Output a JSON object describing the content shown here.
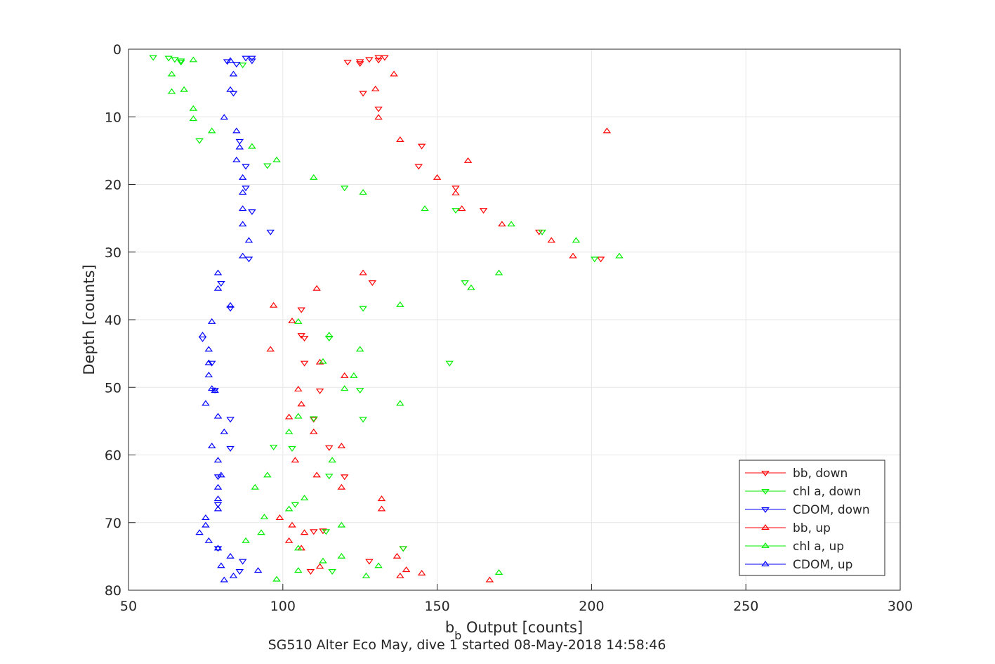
{
  "chart_data": {
    "type": "scatter",
    "title": "",
    "xlabel_main": "b",
    "xlabel_sub": "b",
    "xlabel_rest": " Output [counts]",
    "caption": "SG510 Alter Eco May, dive 1 started 08-May-2018 14:58:46",
    "ylabel": "Depth [counts]",
    "xlim": [
      50,
      300
    ],
    "ylim": [
      0,
      80
    ],
    "y_reversed": true,
    "xticks": [
      50,
      100,
      150,
      200,
      250,
      300
    ],
    "yticks": [
      0,
      10,
      20,
      30,
      40,
      50,
      60,
      70,
      80
    ],
    "xtick_labels": [
      "50",
      "100",
      "150",
      "200",
      "250",
      "300"
    ],
    "ytick_labels": [
      "0",
      "10",
      "20",
      "30",
      "40",
      "50",
      "60",
      "70",
      "80"
    ],
    "grid": true,
    "legend_position": "bottom-right",
    "series": [
      {
        "name": "bb, down",
        "color": "#ff0000",
        "marker": "triangle-down",
        "points": [
          [
            131,
            1.2
          ],
          [
            133,
            1.2
          ],
          [
            128,
            1.5
          ],
          [
            131,
            1.6
          ],
          [
            125,
            1.8
          ],
          [
            121,
            1.9
          ],
          [
            125,
            2.1
          ],
          [
            126,
            6.5
          ],
          [
            131,
            8.8
          ],
          [
            145,
            14.3
          ],
          [
            144,
            17.3
          ],
          [
            156,
            20.5
          ],
          [
            165,
            23.8
          ],
          [
            183,
            27
          ],
          [
            203,
            31
          ],
          [
            129,
            34.5
          ],
          [
            106,
            38.5
          ],
          [
            106,
            42.3
          ],
          [
            107,
            42.7
          ],
          [
            107,
            46.4
          ],
          [
            112,
            50.5
          ],
          [
            110,
            54.7
          ],
          [
            115,
            58.9
          ],
          [
            120,
            63.2
          ],
          [
            113,
            71.2
          ],
          [
            110,
            71.3
          ],
          [
            139,
            73.8
          ],
          [
            128,
            75.7
          ],
          [
            109,
            77.2
          ]
        ]
      },
      {
        "name": "chl a, down",
        "color": "#00ee00",
        "marker": "triangle-down",
        "points": [
          [
            58,
            1.2
          ],
          [
            63,
            1.3
          ],
          [
            65,
            1.5
          ],
          [
            67,
            1.7
          ],
          [
            67,
            1.9
          ],
          [
            87,
            2.3
          ],
          [
            73,
            13.5
          ],
          [
            95,
            17.2
          ],
          [
            120,
            20.5
          ],
          [
            156,
            23.8
          ],
          [
            184,
            27
          ],
          [
            201,
            31
          ],
          [
            159,
            34.5
          ],
          [
            126,
            38.3
          ],
          [
            115,
            42.7
          ],
          [
            154,
            46.4
          ],
          [
            125,
            50.4
          ],
          [
            110,
            54.6
          ],
          [
            126,
            54.7
          ],
          [
            103,
            59
          ],
          [
            97,
            58.8
          ],
          [
            115,
            63.1
          ],
          [
            104,
            67.3
          ],
          [
            114,
            71.3
          ],
          [
            139,
            73.8
          ],
          [
            116,
            77.2
          ]
        ]
      },
      {
        "name": "CDOM, down",
        "color": "#0000ff",
        "marker": "triangle-down",
        "points": [
          [
            88,
            1.3
          ],
          [
            90,
            1.3
          ],
          [
            90,
            1.7
          ],
          [
            82,
            1.8
          ],
          [
            85,
            2.2
          ],
          [
            84,
            6.5
          ],
          [
            86,
            13.6
          ],
          [
            88,
            17.3
          ],
          [
            88,
            20.5
          ],
          [
            90,
            24
          ],
          [
            96,
            27
          ],
          [
            89,
            31
          ],
          [
            80,
            34.6
          ],
          [
            83,
            38.3
          ],
          [
            74,
            42.8
          ],
          [
            77,
            46.4
          ],
          [
            78,
            50.4
          ],
          [
            83,
            54.7
          ],
          [
            83,
            59
          ],
          [
            79,
            63.2
          ],
          [
            79,
            67.3
          ],
          [
            79,
            73.8
          ],
          [
            87,
            75.7
          ],
          [
            86,
            77.2
          ]
        ]
      },
      {
        "name": "bb, up",
        "color": "#ff0000",
        "marker": "triangle-up",
        "points": [
          [
            136,
            3.7
          ],
          [
            130,
            5.9
          ],
          [
            131,
            10.1
          ],
          [
            205,
            12.1
          ],
          [
            138,
            13.4
          ],
          [
            160,
            16.5
          ],
          [
            150,
            19
          ],
          [
            156,
            21.3
          ],
          [
            158,
            23.6
          ],
          [
            171,
            25.9
          ],
          [
            187,
            28.3
          ],
          [
            194,
            30.6
          ],
          [
            126,
            33.1
          ],
          [
            111,
            35.4
          ],
          [
            97,
            37.9
          ],
          [
            103,
            40.2
          ],
          [
            96,
            44.4
          ],
          [
            112,
            46.3
          ],
          [
            120,
            48.3
          ],
          [
            105,
            50.3
          ],
          [
            106,
            52.5
          ],
          [
            102,
            54.4
          ],
          [
            110,
            56.6
          ],
          [
            119,
            58.7
          ],
          [
            104,
            60.8
          ],
          [
            111,
            63
          ],
          [
            119,
            64.8
          ],
          [
            132,
            66.5
          ],
          [
            132,
            68
          ],
          [
            99,
            69.3
          ],
          [
            103,
            70.4
          ],
          [
            107,
            71.5
          ],
          [
            102,
            72.7
          ],
          [
            106,
            73.8
          ],
          [
            137,
            75
          ],
          [
            112,
            76.5
          ],
          [
            140,
            77
          ],
          [
            145,
            77.5
          ],
          [
            138,
            77.9
          ],
          [
            167,
            78.5
          ]
        ]
      },
      {
        "name": "chl a, up",
        "color": "#00ee00",
        "marker": "triangle-up",
        "points": [
          [
            71,
            1.6
          ],
          [
            64,
            3.7
          ],
          [
            68,
            6
          ],
          [
            64,
            6.3
          ],
          [
            71,
            8.8
          ],
          [
            71,
            10.3
          ],
          [
            77,
            12.1
          ],
          [
            90,
            14.4
          ],
          [
            98,
            16.4
          ],
          [
            110,
            19
          ],
          [
            126,
            21.2
          ],
          [
            146,
            23.6
          ],
          [
            174,
            25.9
          ],
          [
            195,
            28.3
          ],
          [
            209,
            30.6
          ],
          [
            170,
            33.1
          ],
          [
            161,
            35.3
          ],
          [
            138,
            37.8
          ],
          [
            105,
            40.3
          ],
          [
            115,
            42.3
          ],
          [
            125,
            44.4
          ],
          [
            113,
            46.2
          ],
          [
            123,
            48.3
          ],
          [
            120,
            50.2
          ],
          [
            138,
            52.4
          ],
          [
            105,
            54.3
          ],
          [
            102,
            56.6
          ],
          [
            116,
            60.8
          ],
          [
            95,
            63
          ],
          [
            91,
            64.8
          ],
          [
            107,
            66.4
          ],
          [
            102,
            68
          ],
          [
            94,
            69.2
          ],
          [
            119,
            70.4
          ],
          [
            93,
            71.5
          ],
          [
            88,
            72.7
          ],
          [
            105,
            73.8
          ],
          [
            119,
            75
          ],
          [
            113,
            75.7
          ],
          [
            131,
            76.4
          ],
          [
            170,
            77.4
          ],
          [
            105,
            77.1
          ],
          [
            127,
            77.9
          ],
          [
            98,
            78.4
          ]
        ]
      },
      {
        "name": "CDOM, up",
        "color": "#0000ff",
        "marker": "triangle-up",
        "points": [
          [
            83,
            1.7
          ],
          [
            84,
            3.7
          ],
          [
            83,
            6
          ],
          [
            81,
            10.1
          ],
          [
            85,
            12.1
          ],
          [
            86,
            14.5
          ],
          [
            85,
            16.4
          ],
          [
            87,
            19
          ],
          [
            87,
            21.2
          ],
          [
            87,
            23.6
          ],
          [
            87,
            25.9
          ],
          [
            89,
            28.3
          ],
          [
            87,
            30.6
          ],
          [
            79,
            33.1
          ],
          [
            79,
            35.4
          ],
          [
            83,
            37.9
          ],
          [
            77,
            40.3
          ],
          [
            74,
            42.3
          ],
          [
            76,
            44.4
          ],
          [
            76,
            46.4
          ],
          [
            76,
            48.2
          ],
          [
            77,
            50.2
          ],
          [
            78,
            50.5
          ],
          [
            75,
            52.4
          ],
          [
            79,
            54.3
          ],
          [
            81,
            56.6
          ],
          [
            77,
            58.7
          ],
          [
            79,
            60.8
          ],
          [
            80,
            63
          ],
          [
            79,
            64.8
          ],
          [
            79,
            66.5
          ],
          [
            79,
            68
          ],
          [
            75,
            69.3
          ],
          [
            75,
            70.4
          ],
          [
            73,
            71.5
          ],
          [
            76,
            72.7
          ],
          [
            79,
            73.8
          ],
          [
            83,
            75
          ],
          [
            80,
            76.4
          ],
          [
            92,
            77.1
          ],
          [
            84,
            77.9
          ],
          [
            81,
            78.5
          ]
        ]
      }
    ]
  }
}
